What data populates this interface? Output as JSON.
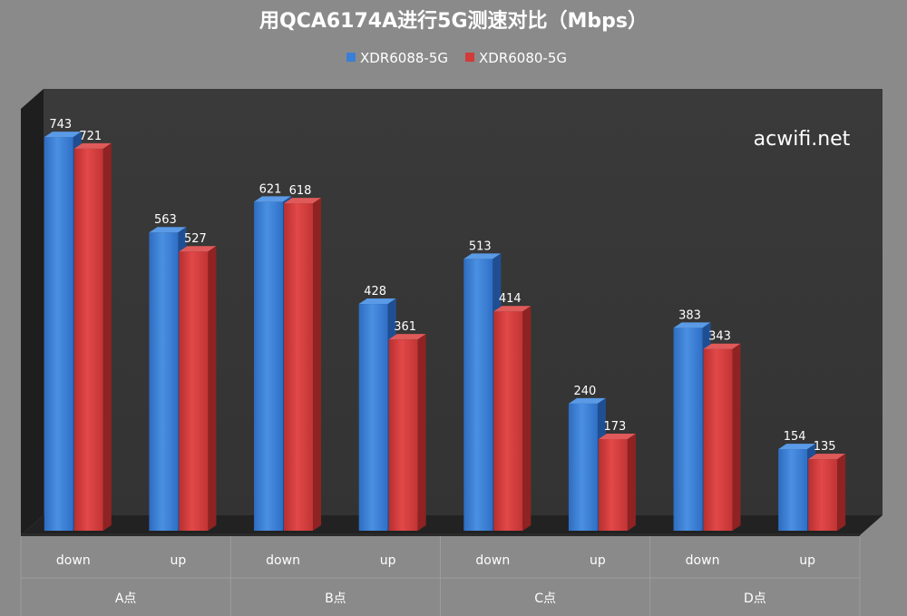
{
  "chart_data": {
    "type": "bar",
    "title": "用QCA6174A进行5G测速对比（Mbps）",
    "watermark": "acwifi.net",
    "groups": [
      "A点",
      "B点",
      "C点",
      "D点"
    ],
    "categories": [
      "down",
      "up",
      "down",
      "up",
      "down",
      "up",
      "down",
      "up"
    ],
    "series": [
      {
        "name": "XDR6088-5G",
        "color": "#3a7fd5",
        "values": [
          743,
          563,
          621,
          428,
          513,
          240,
          383,
          154
        ]
      },
      {
        "name": "XDR6080-5G",
        "color": "#d33a3a",
        "values": [
          721,
          527,
          618,
          361,
          414,
          173,
          343,
          135
        ]
      }
    ],
    "ylim": [
      0,
      750
    ],
    "grid": false,
    "legend_position": "top-center",
    "style": "3d-column"
  }
}
